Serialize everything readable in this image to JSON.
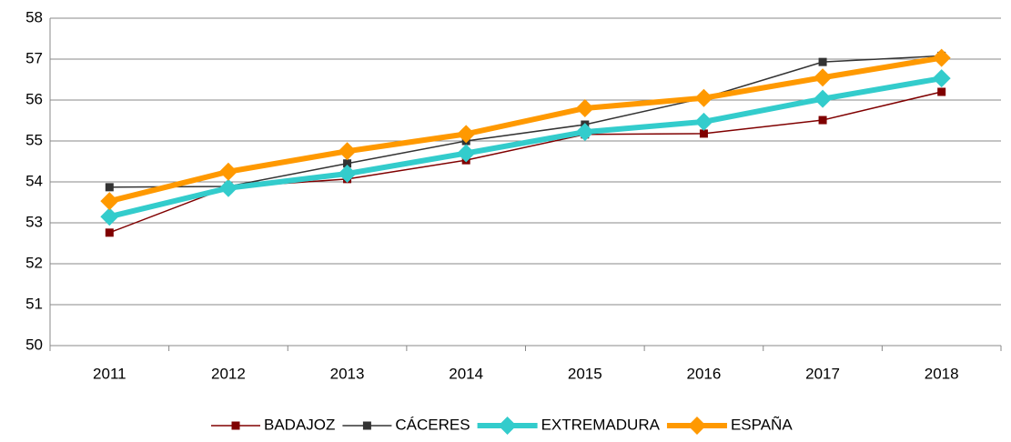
{
  "chart_data": {
    "type": "line",
    "categories": [
      "2011",
      "2012",
      "2013",
      "2014",
      "2015",
      "2016",
      "2017",
      "2018"
    ],
    "series": [
      {
        "name": "BADAJOZ",
        "color": "#800000",
        "values": [
          52.76,
          53.87,
          54.07,
          54.53,
          55.16,
          55.18,
          55.51,
          56.2
        ]
      },
      {
        "name": "CÁCERES",
        "color": "#333333",
        "values": [
          53.87,
          53.89,
          54.45,
          55.0,
          55.4,
          56.05,
          56.93,
          57.08
        ]
      },
      {
        "name": "EXTREMADURA",
        "color": "#33cccc",
        "values": [
          53.15,
          53.85,
          54.2,
          54.7,
          55.22,
          55.47,
          56.03,
          56.53
        ]
      },
      {
        "name": "ESPAÑA",
        "color": "#ff9900",
        "values": [
          53.53,
          54.25,
          54.75,
          55.17,
          55.8,
          56.05,
          56.55,
          57.03
        ]
      }
    ],
    "ylim": [
      50,
      58
    ],
    "yticks": [
      50,
      51,
      52,
      53,
      54,
      55,
      56,
      57,
      58
    ],
    "grid": true,
    "legend": "bottom"
  }
}
